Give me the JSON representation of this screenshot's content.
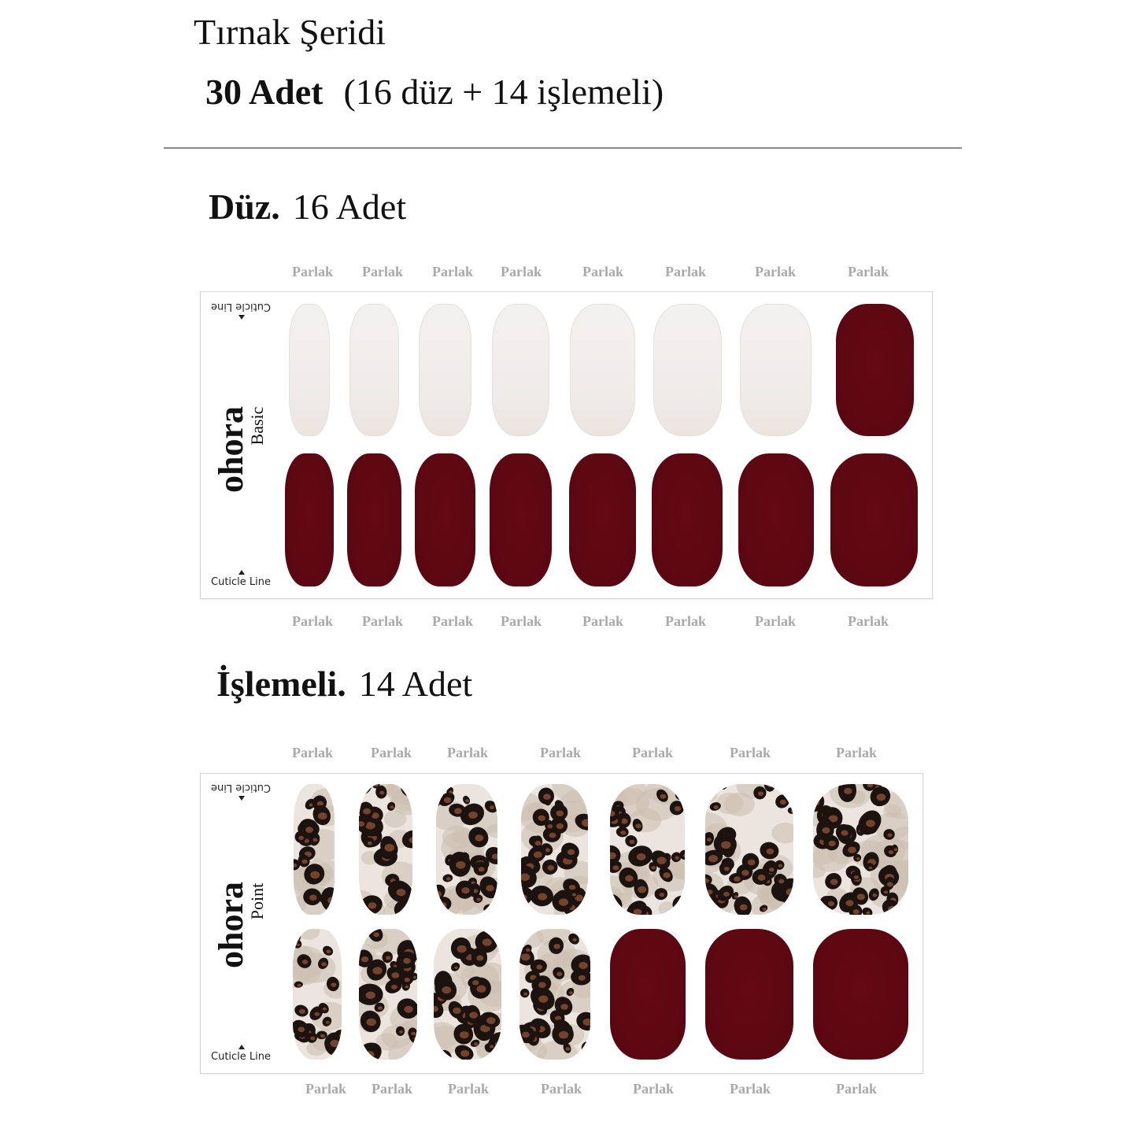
{
  "header": {
    "title": "Tırnak Şeridi",
    "count_bold": "30 Adet",
    "count_detail": "(16 düz + 14 işlemeli)"
  },
  "plain_section": {
    "heading_bold": "Düz.",
    "heading_rest": "16 Adet",
    "brand": "ohora",
    "line": "Basic",
    "cuticle_label": "Cuticle Line",
    "finish_label": "Parlak",
    "top_row": [
      "white-shimmer",
      "white-shimmer",
      "white-shimmer",
      "white-shimmer",
      "white-shimmer",
      "white-shimmer",
      "white-shimmer",
      "burgundy"
    ],
    "bottom_row": [
      "burgundy",
      "burgundy",
      "burgundy",
      "burgundy",
      "burgundy",
      "burgundy",
      "burgundy",
      "burgundy"
    ]
  },
  "pattern_section": {
    "heading_bold": "İşlemeli.",
    "heading_rest": "14 Adet",
    "brand": "ohora",
    "line": "Point",
    "cuticle_label": "Cuticle Line",
    "finish_label": "Parlak",
    "top_row": [
      "leopard",
      "leopard",
      "leopard",
      "leopard",
      "leopard",
      "leopard",
      "leopard"
    ],
    "bottom_row": [
      "leopard",
      "leopard",
      "leopard",
      "leopard",
      "burgundy",
      "burgundy",
      "burgundy"
    ]
  },
  "colors": {
    "burgundy": "#5e0812",
    "white_shimmer": "#f1eeec",
    "leopard_base": "#ece5df",
    "label_grey": "#a9a9a9"
  }
}
